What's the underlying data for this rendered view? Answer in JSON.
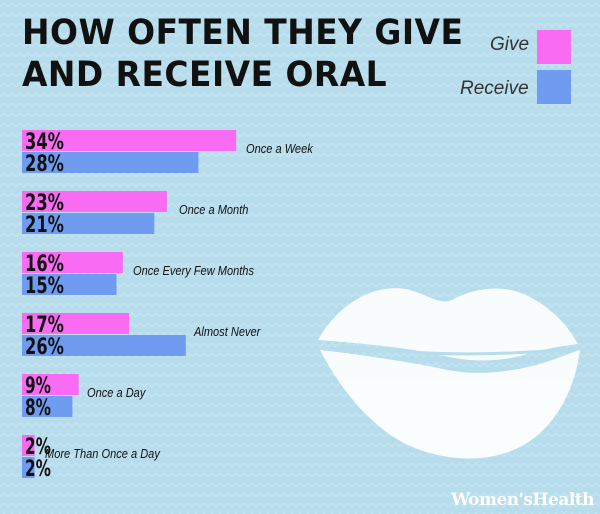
{
  "title_line1": "HOW OFTEN THEY GIVE",
  "title_line2": "AND RECEIVE ORAL",
  "watermark": "Women'sHealth",
  "colors": {
    "give": "#f86bf2",
    "receive": "#6f9cf0",
    "background": "#b7dcec",
    "text": "#111111"
  },
  "chart_data": {
    "type": "bar",
    "orientation": "horizontal",
    "categories": [
      "Once a Week",
      "Once a Month",
      "Once Every Few Months",
      "Almost Never",
      "Once a Day",
      "More Than Once a Day"
    ],
    "series": [
      {
        "name": "Give",
        "values": [
          34,
          23,
          16,
          17,
          9,
          2
        ],
        "labels": [
          "34%",
          "23%",
          "16%",
          "17%",
          "9%",
          "2%"
        ]
      },
      {
        "name": "Receive",
        "values": [
          28,
          21,
          15,
          26,
          8,
          2
        ],
        "labels": [
          "28%",
          "21%",
          "15%",
          "26%",
          "8%",
          "2%"
        ]
      }
    ],
    "title": "HOW OFTEN THEY GIVE AND RECEIVE ORAL",
    "legend_placement": "top-right",
    "grid": false
  }
}
